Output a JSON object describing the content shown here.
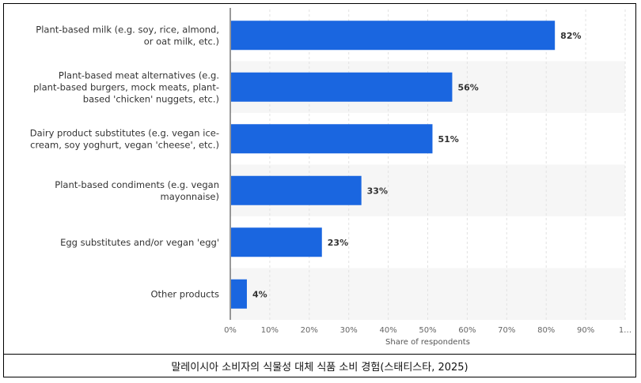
{
  "chart_data": {
    "type": "bar",
    "orientation": "horizontal",
    "categories": [
      [
        "Plant-based milk (e.g. soy, rice, almond,",
        "or oat milk, etc.)"
      ],
      [
        "Plant-based meat alternatives (e.g.",
        "plant-based burgers, mock meats, plant-",
        "based 'chicken' nuggets, etc.)"
      ],
      [
        "Dairy product substitutes (e.g. vegan ice-",
        "cream, soy yoghurt, vegan 'cheese', etc.)"
      ],
      [
        "Plant-based condiments (e.g. vegan",
        "mayonnaise)"
      ],
      [
        "Egg substitutes and/or vegan 'egg'"
      ],
      [
        "Other products"
      ]
    ],
    "values": [
      82,
      56,
      51,
      33,
      23,
      4
    ],
    "value_labels": [
      "82%",
      "56%",
      "51%",
      "33%",
      "23%",
      "4%"
    ],
    "xticks": [
      "0%",
      "10%",
      "20%",
      "30%",
      "40%",
      "50%",
      "60%",
      "70%",
      "80%",
      "90%",
      "1…"
    ],
    "xlim": [
      0,
      100
    ],
    "xlabel": "Share of respondents",
    "bar_color": "#1a66e0",
    "stripe_color": "#f6f6f6",
    "grid": true
  },
  "caption": "말레이시아 소비자의 식물성 대체 식품 소비 경험(스태티스타, 2025)"
}
